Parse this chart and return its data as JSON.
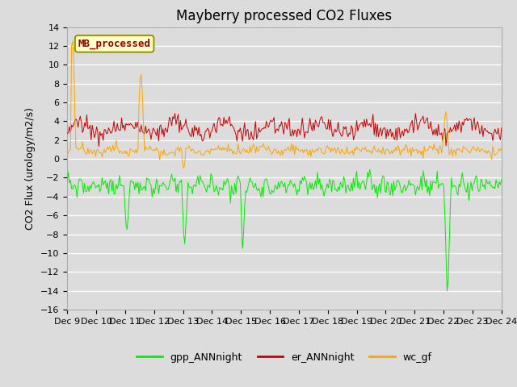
{
  "title": "Mayberry processed CO2 Fluxes",
  "ylabel": "CO2 Flux (urology/m2/s)",
  "ylim": [
    -16,
    14
  ],
  "yticks": [
    -16,
    -14,
    -12,
    -10,
    -8,
    -6,
    -4,
    -2,
    0,
    2,
    4,
    6,
    8,
    10,
    12,
    14
  ],
  "bg_color": "#dcdcdc",
  "grid_color": "#ffffff",
  "legend_label": "MB_processed",
  "legend_label_color": "#990000",
  "legend_box_facecolor": "#ffffcc",
  "legend_box_edgecolor": "#999900",
  "line_green_color": "#00ee00",
  "line_red_color": "#cc0000",
  "line_orange_color": "#ffa500",
  "line_green_label": "gpp_ANNnight",
  "line_red_label": "er_ANNnight",
  "line_orange_label": "wc_gf",
  "n_points": 400,
  "x_start": 9,
  "x_end": 24,
  "xtick_positions": [
    9,
    10,
    11,
    12,
    13,
    14,
    15,
    16,
    17,
    18,
    19,
    20,
    21,
    22,
    23,
    24
  ],
  "xtick_labels": [
    "Dec 9",
    "Dec 10",
    "Dec 11",
    "Dec 12",
    "Dec 13",
    "Dec 14",
    "Dec 15",
    "Dec 16",
    "Dec 17",
    "Dec 18",
    "Dec 19",
    "Dec 20",
    "Dec 21",
    "Dec 22",
    "Dec 23",
    "Dec 24"
  ],
  "title_fontsize": 12,
  "ylabel_fontsize": 9,
  "tick_fontsize": 8,
  "legend_fontsize": 9
}
